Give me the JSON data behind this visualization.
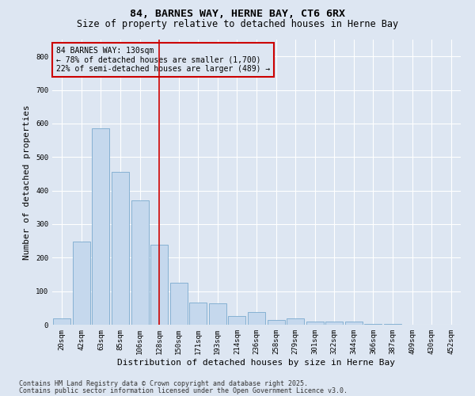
{
  "title1": "84, BARNES WAY, HERNE BAY, CT6 6RX",
  "title2": "Size of property relative to detached houses in Herne Bay",
  "xlabel": "Distribution of detached houses by size in Herne Bay",
  "ylabel": "Number of detached properties",
  "categories": [
    "20sqm",
    "42sqm",
    "63sqm",
    "85sqm",
    "106sqm",
    "128sqm",
    "150sqm",
    "171sqm",
    "193sqm",
    "214sqm",
    "236sqm",
    "258sqm",
    "279sqm",
    "301sqm",
    "322sqm",
    "344sqm",
    "366sqm",
    "387sqm",
    "409sqm",
    "430sqm",
    "452sqm"
  ],
  "values": [
    20,
    248,
    585,
    455,
    370,
    238,
    125,
    65,
    63,
    25,
    37,
    15,
    18,
    10,
    10,
    10,
    3,
    2,
    1,
    1,
    0
  ],
  "bar_color": "#c5d8ed",
  "bar_edge_color": "#7aaace",
  "vline_x": 5,
  "vline_color": "#cc0000",
  "annotation_text": "84 BARNES WAY: 130sqm\n← 78% of detached houses are smaller (1,700)\n22% of semi-detached houses are larger (489) →",
  "annotation_box_color": "#cc0000",
  "bg_color": "#dde6f2",
  "grid_color": "#ffffff",
  "ylim": [
    0,
    850
  ],
  "yticks": [
    0,
    100,
    200,
    300,
    400,
    500,
    600,
    700,
    800
  ],
  "footer1": "Contains HM Land Registry data © Crown copyright and database right 2025.",
  "footer2": "Contains public sector information licensed under the Open Government Licence v3.0.",
  "title1_fontsize": 9.5,
  "title2_fontsize": 8.5,
  "tick_fontsize": 6.5,
  "label_fontsize": 8,
  "annotation_fontsize": 7,
  "footer_fontsize": 6
}
